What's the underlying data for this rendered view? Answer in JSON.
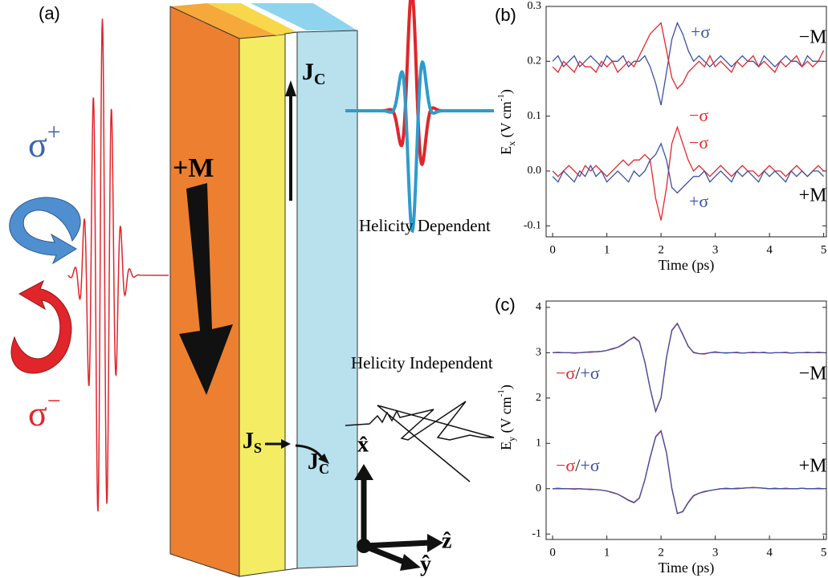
{
  "diagram": {
    "panel_label": "(a)",
    "sigma_plus": {
      "symbol": "σ",
      "sup": "+"
    },
    "sigma_minus": {
      "symbol": "σ",
      "sup": "−"
    },
    "magnetization": "+M",
    "jc_top": {
      "main": "J",
      "sub": "C"
    },
    "js": {
      "main": "J",
      "sub": "S"
    },
    "jc_bottom": {
      "main": "J",
      "sub": "C"
    },
    "helicity_dependent": "Helicity Dependent",
    "helicity_independent": "Helicity Independent",
    "axis_x": "x̂",
    "axis_z": "ẑ",
    "axis_y": "ŷ"
  },
  "chart_data": [
    {
      "type": "line",
      "panel_label": "(b)",
      "x_label": "Time (ps)",
      "y_label": {
        "main": "E",
        "sub": "x",
        "unit": " (V cm",
        "sup": "-1",
        "close": ")"
      },
      "x": [
        0,
        0.1,
        0.2,
        0.3,
        0.4,
        0.5,
        0.6,
        0.7,
        0.8,
        0.9,
        1,
        1.1,
        1.2,
        1.3,
        1.4,
        1.5,
        1.6,
        1.7,
        1.8,
        1.9,
        2,
        2.1,
        2.2,
        2.3,
        2.4,
        2.5,
        2.6,
        2.7,
        2.8,
        2.9,
        3,
        3.1,
        3.2,
        3.3,
        3.4,
        3.5,
        3.6,
        3.7,
        3.8,
        3.9,
        4,
        4.1,
        4.2,
        4.3,
        4.4,
        4.5,
        4.6,
        4.7,
        4.8,
        4.9,
        5
      ],
      "xlim": [
        -0.12,
        5.05
      ],
      "xticks": [
        0,
        1,
        2,
        3,
        4,
        5
      ],
      "ylim": [
        -0.12,
        0.3
      ],
      "yticks": [
        -0.1,
        {
          "value": 0,
          "label": "0.0"
        },
        0.1,
        0.2,
        0.3
      ],
      "annotations": [
        "−M",
        "+M"
      ],
      "series": [
        {
          "name": "+σ",
          "color": "#3a50a8",
          "values": [
            0.2,
            0.21,
            0.19,
            0.2,
            0.21,
            0.19,
            0.2,
            0.21,
            0.2,
            0.19,
            0.21,
            0.2,
            0.2,
            0.21,
            0.19,
            0.2,
            0.2,
            0.21,
            0.19,
            0.16,
            0.12,
            0.18,
            0.24,
            0.27,
            0.25,
            0.22,
            0.2,
            0.21,
            0.2,
            0.19,
            0.2,
            0.21,
            0.2,
            0.19,
            0.2,
            0.21,
            0.2,
            0.2,
            0.19,
            0.21,
            0.2,
            0.19,
            0.2,
            0.21,
            0.2,
            0.2,
            0.19,
            0.21,
            0.2,
            0.2,
            0.2
          ]
        },
        {
          "name": "−σ",
          "color": "#e8262a",
          "values": [
            0.19,
            0.18,
            0.2,
            0.19,
            0.18,
            0.2,
            0.19,
            0.19,
            0.18,
            0.2,
            0.19,
            0.2,
            0.18,
            0.19,
            0.2,
            0.19,
            0.21,
            0.23,
            0.25,
            0.26,
            0.27,
            0.22,
            0.17,
            0.15,
            0.16,
            0.18,
            0.19,
            0.2,
            0.19,
            0.21,
            0.19,
            0.2,
            0.19,
            0.18,
            0.2,
            0.19,
            0.2,
            0.21,
            0.19,
            0.2,
            0.19,
            0.18,
            0.2,
            0.19,
            0.2,
            0.21,
            0.19,
            0.2,
            0.19,
            0.2,
            0.22
          ]
        },
        {
          "name": "−σ",
          "color": "#e8262a",
          "values": [
            0,
            -0.01,
            0,
            0.01,
            0,
            -0.01,
            0.01,
            0,
            0.01,
            0,
            -0.01,
            0,
            0.01,
            0.02,
            0.01,
            0.02,
            0.02,
            0.03,
            0.02,
            -0.05,
            -0.09,
            -0.03,
            0.05,
            0.08,
            0.05,
            0.02,
            0,
            0.01,
            0,
            -0.01,
            0,
            0.01,
            0,
            -0.01,
            0,
            0.01,
            0,
            0,
            -0.01,
            0,
            0.01,
            0,
            0,
            -0.01,
            0,
            0.01,
            0,
            -0.01,
            0,
            0.01,
            0
          ]
        },
        {
          "name": "+σ",
          "color": "#3a50a8",
          "values": [
            -0.01,
            -0.02,
            0,
            -0.01,
            -0.02,
            0,
            -0.01,
            0.01,
            -0.01,
            0,
            -0.02,
            -0.01,
            0,
            -0.01,
            -0.02,
            0,
            -0.01,
            0,
            0.02,
            0.03,
            0.05,
            0.02,
            -0.03,
            -0.04,
            -0.03,
            -0.02,
            -0.01,
            -0.01,
            0,
            -0.02,
            -0.01,
            0,
            -0.01,
            -0.02,
            0,
            -0.01,
            0,
            -0.01,
            -0.02,
            0,
            -0.01,
            0,
            -0.01,
            -0.02,
            0,
            -0.01,
            0,
            -0.01,
            0,
            0,
            -0.01
          ]
        }
      ]
    },
    {
      "type": "line",
      "panel_label": "(c)",
      "x_label": "Time (ps)",
      "y_label": {
        "main": "E",
        "sub": "y",
        "unit": " (V cm",
        "sup": "-1",
        "close": ")"
      },
      "x": [
        0,
        0.1,
        0.2,
        0.3,
        0.4,
        0.5,
        0.6,
        0.7,
        0.8,
        0.9,
        1,
        1.1,
        1.2,
        1.3,
        1.4,
        1.5,
        1.6,
        1.7,
        1.8,
        1.9,
        2,
        2.1,
        2.2,
        2.3,
        2.4,
        2.5,
        2.6,
        2.7,
        2.8,
        2.9,
        3,
        3.1,
        3.2,
        3.3,
        3.4,
        3.5,
        3.6,
        3.7,
        3.8,
        3.9,
        4,
        4.1,
        4.2,
        4.3,
        4.4,
        4.5,
        4.6,
        4.7,
        4.8,
        4.9,
        5
      ],
      "xlim": [
        -0.12,
        5.05
      ],
      "xticks": [
        0,
        1,
        2,
        3,
        4,
        5
      ],
      "ylim": [
        -1.12,
        4.14
      ],
      "yticks": [
        -1,
        0,
        1,
        2,
        3,
        4
      ],
      "separator": "/",
      "annotations": [
        "−M",
        "+M"
      ],
      "series": [
        {
          "name": "−σ",
          "color": "#e8262a",
          "values": [
            3,
            3,
            3,
            3,
            3,
            3,
            3.01,
            3.01,
            3.02,
            3.03,
            3.05,
            3.08,
            3.12,
            3.18,
            3.27,
            3.35,
            3.25,
            2.8,
            2.2,
            1.7,
            2,
            2.9,
            3.5,
            3.65,
            3.4,
            3.15,
            3,
            2.98,
            2.97,
            3,
            3.02,
            3,
            2.99,
            3,
            3,
            2.99,
            3,
            3.01,
            3,
            3,
            2.99,
            3,
            3,
            3,
            2.99,
            3,
            3,
            3.01,
            3,
            3,
            3
          ]
        },
        {
          "name": "+σ",
          "color": "#3a50a8",
          "values": [
            3,
            3.01,
            3,
            3,
            2.99,
            3,
            3.01,
            3.02,
            3.02,
            3.03,
            3.05,
            3.09,
            3.12,
            3.19,
            3.27,
            3.34,
            3.24,
            2.8,
            2.21,
            1.71,
            2.01,
            2.9,
            3.49,
            3.64,
            3.41,
            3.14,
            3.01,
            2.98,
            2.98,
            3,
            3.01,
            3,
            3,
            3,
            3.01,
            2.99,
            3,
            3,
            3,
            3.01,
            2.99,
            3,
            3,
            3.01,
            2.99,
            3,
            3,
            3,
            3,
            3.01,
            3
          ]
        },
        {
          "name": "−σ",
          "color": "#e8262a",
          "values": [
            0,
            0,
            0,
            0,
            0,
            0,
            -0.01,
            -0.01,
            -0.02,
            -0.03,
            -0.05,
            -0.08,
            -0.12,
            -0.18,
            -0.25,
            -0.3,
            -0.2,
            0.2,
            0.7,
            1.15,
            1.28,
            0.8,
            0,
            -0.55,
            -0.5,
            -0.3,
            -0.15,
            -0.1,
            -0.07,
            -0.04,
            -0.02,
            0,
            0.01,
            0,
            0,
            0.01,
            0.02,
            0.03,
            0.02,
            0.01,
            0,
            0,
            0,
            0.01,
            0,
            0,
            0.01,
            0,
            0,
            0,
            0
          ]
        },
        {
          "name": "+σ",
          "color": "#3a50a8",
          "values": [
            0,
            0.01,
            0,
            0,
            -0.01,
            0,
            -0.01,
            -0.02,
            -0.02,
            -0.03,
            -0.05,
            -0.09,
            -0.12,
            -0.19,
            -0.26,
            -0.31,
            -0.21,
            0.19,
            0.69,
            1.14,
            1.27,
            0.79,
            0.01,
            -0.54,
            -0.51,
            -0.31,
            -0.16,
            -0.1,
            -0.06,
            -0.04,
            -0.02,
            0,
            0,
            0,
            0.01,
            0.01,
            0.02,
            0.02,
            0.02,
            0.01,
            0,
            0.01,
            0,
            0,
            0,
            0,
            0.01,
            0,
            0,
            0.01,
            0
          ]
        }
      ]
    }
  ]
}
